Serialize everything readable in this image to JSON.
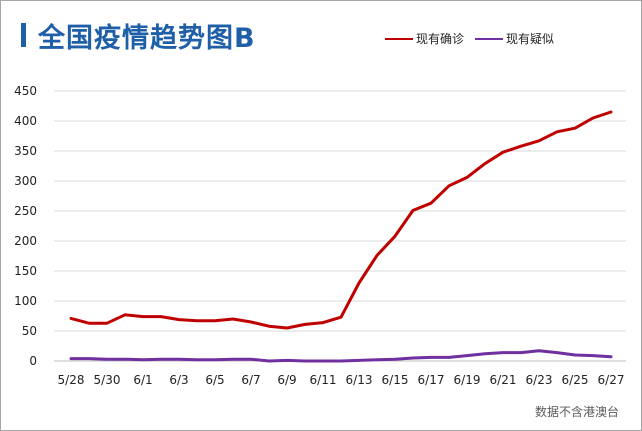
{
  "title": "全国疫情趋势图B",
  "source_note": "数据不含港澳台",
  "colors": {
    "confirmed": "#c00000",
    "suspected": "#7030a0",
    "title": "#1f5fa8",
    "grid": "#d9d9d9"
  },
  "chart_data": {
    "type": "line",
    "title": "全国疫情趋势图B",
    "xlabel": "",
    "ylabel": "",
    "ylim": [
      0,
      450
    ],
    "yticks": [
      0,
      50,
      100,
      150,
      200,
      250,
      300,
      350,
      400,
      450
    ],
    "x": [
      "5/28",
      "5/29",
      "5/30",
      "5/31",
      "6/1",
      "6/2",
      "6/3",
      "6/4",
      "6/5",
      "6/6",
      "6/7",
      "6/8",
      "6/9",
      "6/10",
      "6/11",
      "6/12",
      "6/13",
      "6/14",
      "6/15",
      "6/16",
      "6/17",
      "6/18",
      "6/19",
      "6/20",
      "6/21",
      "6/22",
      "6/23",
      "6/24",
      "6/25",
      "6/26",
      "6/27"
    ],
    "xtick_labels": [
      "5/28",
      "5/30",
      "6/1",
      "6/3",
      "6/5",
      "6/7",
      "6/9",
      "6/11",
      "6/13",
      "6/15",
      "6/17",
      "6/19",
      "6/21",
      "6/23",
      "6/25",
      "6/27"
    ],
    "grid": true,
    "legend_position": "top-right",
    "series": [
      {
        "name": "现有确诊",
        "color": "#c00000",
        "values": [
          71,
          63,
          63,
          77,
          74,
          74,
          69,
          67,
          67,
          70,
          65,
          58,
          55,
          61,
          64,
          73,
          130,
          176,
          208,
          251,
          263,
          292,
          306,
          329,
          348,
          358,
          367,
          382,
          388,
          405,
          415
        ]
      },
      {
        "name": "现有疑似",
        "color": "#7030a0",
        "values": [
          4,
          4,
          3,
          3,
          2,
          3,
          3,
          2,
          2,
          3,
          3,
          0,
          1,
          0,
          0,
          0,
          1,
          2,
          3,
          5,
          6,
          6,
          9,
          12,
          14,
          14,
          17,
          14,
          10,
          9,
          7
        ]
      }
    ]
  }
}
